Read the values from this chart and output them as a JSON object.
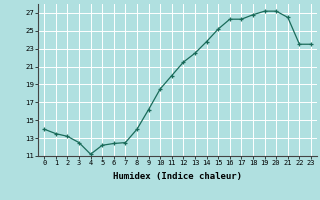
{
  "x": [
    0,
    1,
    2,
    3,
    4,
    5,
    6,
    7,
    8,
    9,
    10,
    11,
    12,
    13,
    14,
    15,
    16,
    17,
    18,
    19,
    20,
    21,
    22,
    23
  ],
  "y": [
    14.0,
    13.5,
    13.2,
    12.5,
    11.2,
    12.2,
    12.4,
    12.5,
    14.0,
    16.2,
    18.5,
    20.0,
    21.5,
    22.5,
    23.8,
    25.2,
    26.3,
    26.3,
    26.8,
    27.2,
    27.2,
    26.5,
    23.5,
    23.5
  ],
  "line_color": "#1a6b5a",
  "marker": "+",
  "bg_color": "#b0e0e0",
  "grid_color": "#ffffff",
  "xlabel": "Humidex (Indice chaleur)",
  "ylim": [
    11,
    28
  ],
  "xlim": [
    -0.5,
    23.5
  ],
  "yticks": [
    11,
    13,
    15,
    17,
    19,
    21,
    23,
    25,
    27
  ],
  "xtick_labels": [
    "0",
    "1",
    "2",
    "3",
    "4",
    "5",
    "6",
    "7",
    "8",
    "9",
    "10",
    "11",
    "12",
    "13",
    "14",
    "15",
    "16",
    "17",
    "18",
    "19",
    "20",
    "21",
    "22",
    "23"
  ],
  "axis_fontsize": 6.0,
  "tick_fontsize": 5.0,
  "xlabel_fontsize": 6.5
}
